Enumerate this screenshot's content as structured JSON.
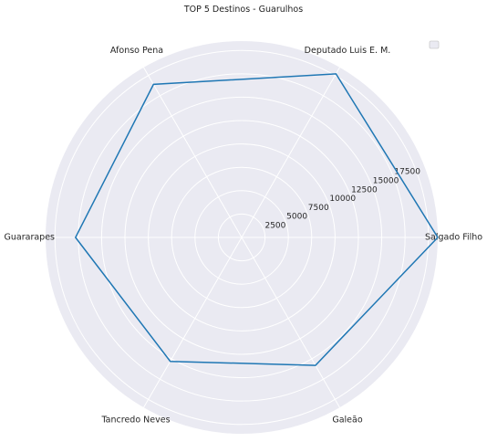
{
  "chart_data": {
    "type": "radar",
    "title": "TOP 5 Destinos - Guarulhos",
    "categories": [
      "Salgado Filho",
      "Deputado Luis E. M.",
      "Afonso Pena",
      "Guararapes",
      "Tancredo Neves",
      "Galeão"
    ],
    "series": [
      {
        "values": [
          21000,
          20200,
          18900,
          17800,
          15300,
          15800
        ],
        "closing_value": 21000,
        "color": "#1f77b4"
      }
    ],
    "radial_ticks": [
      2500,
      5000,
      7500,
      10000,
      12500,
      15000,
      17500
    ],
    "rlim": [
      0,
      21000
    ],
    "grid": true,
    "legend": "top-right (empty)",
    "colors": {
      "background": "#eaeaf2",
      "grid": "#ffffff",
      "line": "#1f77b4"
    }
  }
}
